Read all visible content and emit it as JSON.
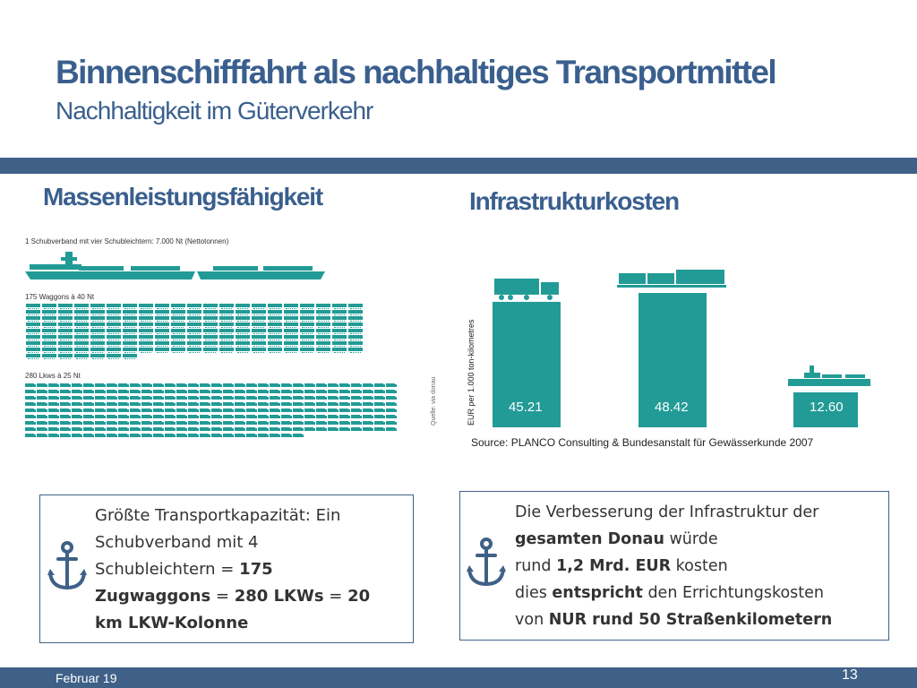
{
  "header": {
    "title": "Binnenschifffahrt als nachhaltiges Transportmittel",
    "subtitle": "Nachhaltigkeit im Güterverkehr"
  },
  "left": {
    "heading": "Massenleistungsfähigkeit",
    "caption_ship": "1 Schubverband mit vier Schubleichtern: 7.000 Nt (Nettotonnen)",
    "caption_wagons": "175 Waggons à 40 Nt",
    "caption_trucks": "280 Lkws à 25 Nt",
    "side_source": "Quelle: via donau",
    "wagon_count": 175,
    "truck_count": 280
  },
  "right": {
    "heading": "Infrastrukturkosten",
    "source": "Source: PLANCO Consulting & Bundesanstalt für Gewässerkunde 2007"
  },
  "chart_data": {
    "type": "bar",
    "categories": [
      "Lkw",
      "Bahn",
      "Binnenschiff"
    ],
    "values": [
      45.21,
      48.42,
      12.6
    ],
    "value_labels": [
      "45.21",
      "48.42",
      "12.60"
    ],
    "ylabel": "EUR per 1.000 ton-kilometres",
    "title": "",
    "xlabel": "",
    "ylim": [
      0,
      48.42
    ],
    "grid": false,
    "bar_color": "#229b96",
    "icons": [
      "truck-icon",
      "train-icon",
      "ship-icon"
    ]
  },
  "info_left": {
    "line1": "Größte Transportkapazität: Ein",
    "line2": "Schubverband mit  4",
    "line3a": "Schubleichtern = ",
    "line3b": "175",
    "line4a": "Zugwaggons",
    "line4b": " = ",
    "line4c": "280 LKWs",
    "line4d": " = ",
    "line4e": "20",
    "line5": "km LKW-Kolonne"
  },
  "info_right": {
    "line1": "Die Verbesserung der Infrastruktur der",
    "line2a": "gesamten Donau",
    "line2b": " würde",
    "line3a": "rund ",
    "line3b": "1,2 Mrd. EUR",
    "line3c": " kosten",
    "line4a": "dies ",
    "line4b": "entspricht",
    "line4c": " den Errichtungskosten",
    "line5a": "von ",
    "line5b": "NUR rund 50 Straßenkilometern"
  },
  "footer": {
    "date": "Februar 19",
    "page": "13"
  },
  "colors": {
    "accent": "#3f6188",
    "teal": "#229b96",
    "heading": "#3a5f8e"
  }
}
